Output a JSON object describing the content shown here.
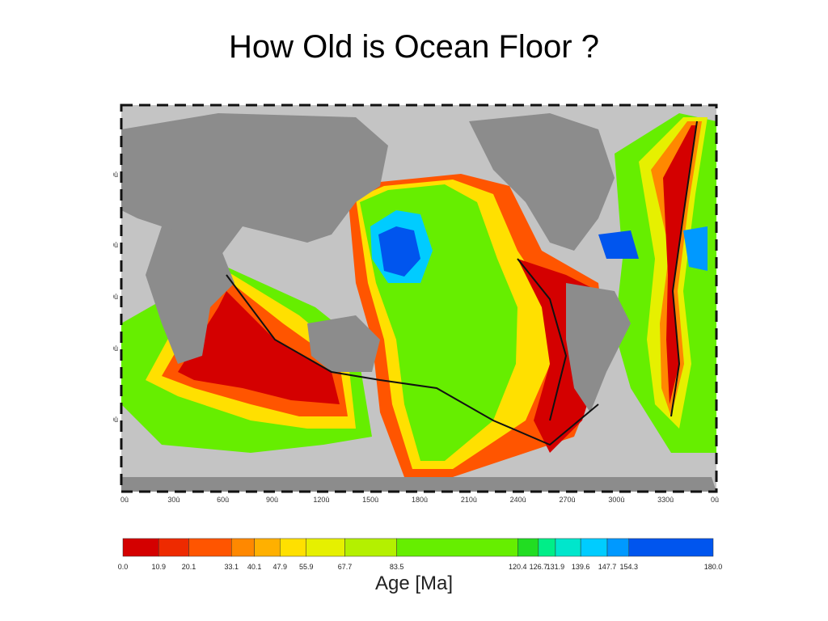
{
  "slide": {
    "title": "How Old is Ocean Floor ?"
  },
  "map": {
    "latitude_labels": [
      "60û",
      "30û",
      "0û",
      "-30û",
      "-60û"
    ],
    "longitude_labels": [
      "0û",
      "30û",
      "60û",
      "90û",
      "120û",
      "150û",
      "180û",
      "210û",
      "240û",
      "270û",
      "300û",
      "330û",
      "0û"
    ],
    "land_color": "#8c8c8c",
    "shelf_color": "#c4c4c4",
    "ridge_color": "#111111"
  },
  "legend": {
    "title": "Age [Ma]",
    "ticks": [
      "0.0",
      "10.9",
      "20.1",
      "33.1",
      "40.1",
      "47.9",
      "55.9",
      "67.7",
      "83.5",
      "120.4",
      "126.7",
      "131.9",
      "139.6",
      "147.7",
      "154.3",
      "180.0"
    ],
    "tick_values": [
      0.0,
      10.9,
      20.1,
      33.1,
      40.1,
      47.9,
      55.9,
      67.7,
      83.5,
      120.4,
      126.7,
      131.9,
      139.6,
      147.7,
      154.3,
      180.0
    ],
    "colors": [
      "#d40000",
      "#ee2a00",
      "#ff5500",
      "#ff8800",
      "#ffb000",
      "#ffe000",
      "#e6f000",
      "#b4f000",
      "#66ee00",
      "#22dd22",
      "#00ee88",
      "#00e6cc",
      "#00ccff",
      "#0099ff",
      "#0055ee"
    ]
  }
}
